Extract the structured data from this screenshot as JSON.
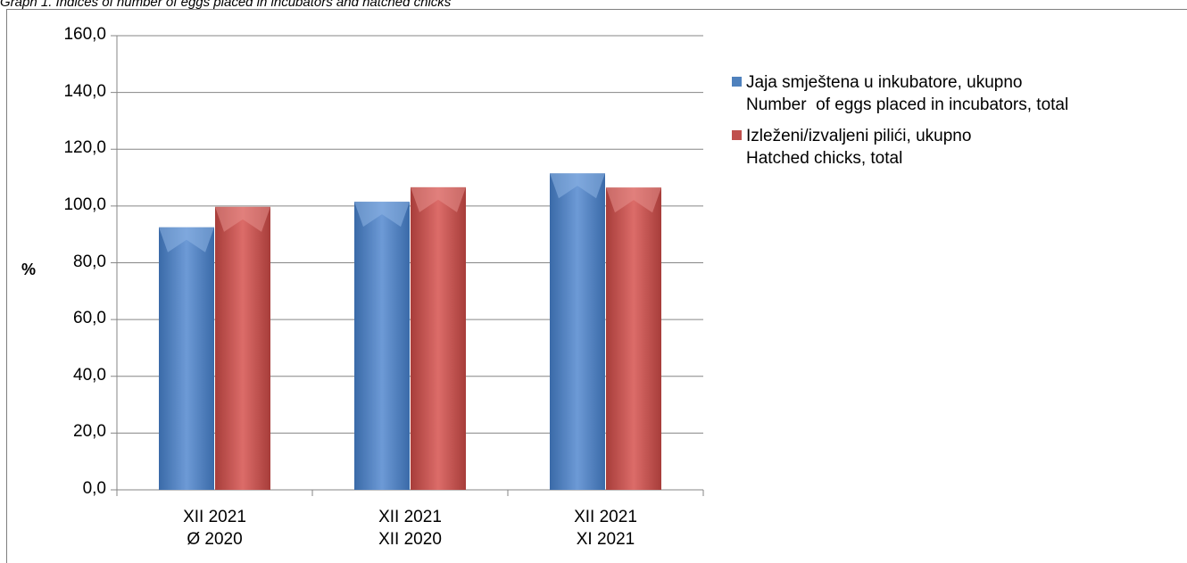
{
  "caption": "Graph 1. Indices of number of eggs placed in incubators and hatched chicks",
  "colors": {
    "blue": "#4f81bd",
    "red": "#c0504d"
  },
  "chart_data": {
    "type": "bar",
    "ylabel": "%",
    "ylim": [
      0,
      160
    ],
    "yticks": [
      "0,0",
      "20,0",
      "40,0",
      "60,0",
      "80,0",
      "100,0",
      "120,0",
      "140,0",
      "160,0"
    ],
    "categories": [
      [
        "XII 2021",
        "Ø 2020"
      ],
      [
        "XII 2021",
        "XII 2020"
      ],
      [
        "XII 2021",
        "XI 2021"
      ]
    ],
    "series": [
      {
        "name": [
          "Jaja smještena u inkubatore, ukupno",
          "Number  of eggs placed in incubators, total"
        ],
        "color": "#4f81bd",
        "values": [
          92.5,
          101.5,
          111.5
        ]
      },
      {
        "name": [
          "Izleženi/izvaljeni pilići, ukupno",
          "Hatched chicks, total"
        ],
        "color": "#c0504d",
        "values": [
          99.7,
          106.6,
          106.5
        ]
      }
    ],
    "legend_position": "right",
    "grid": true
  }
}
